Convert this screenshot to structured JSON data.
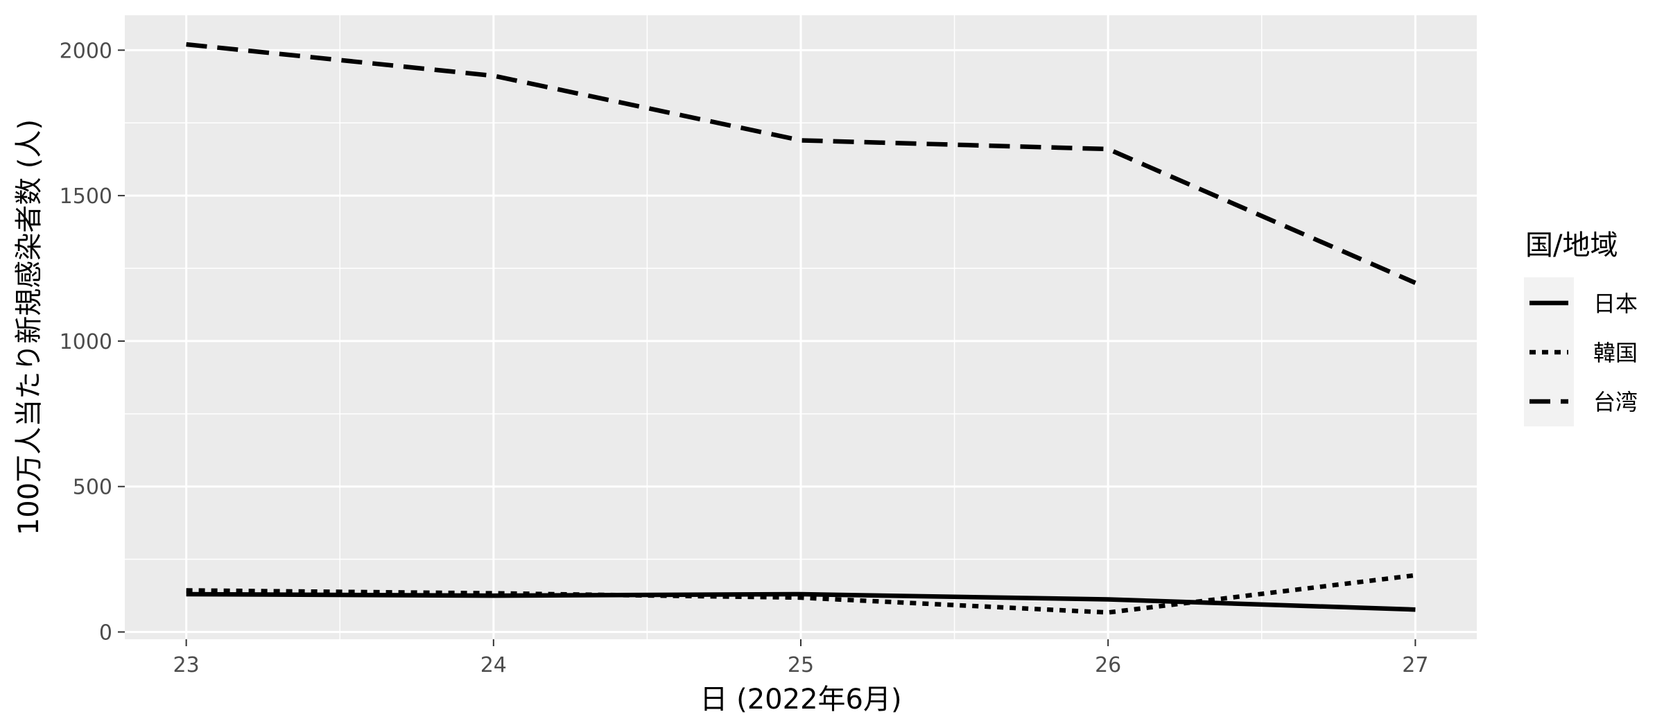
{
  "chart_data": {
    "type": "line",
    "x": [
      23,
      24,
      25,
      26,
      27
    ],
    "x_tick_labels": [
      "23",
      "24",
      "25",
      "26",
      "27"
    ],
    "xlim": [
      22.8,
      27.2
    ],
    "ylim": [
      -25,
      2120
    ],
    "y_ticks": [
      0,
      500,
      1000,
      1500,
      2000
    ],
    "y_tick_labels": [
      "0",
      "500",
      "1000",
      "1500",
      "2000"
    ],
    "xlabel": "日 (2022年6月)",
    "ylabel": "100万人当たり新規感染者数 (人)",
    "grid": true,
    "legend": {
      "title": "国/地域",
      "position": "right"
    },
    "series": [
      {
        "name": "日本",
        "linetype": "solid",
        "color": "#000000",
        "values": [
          130,
          125,
          130,
          112,
          77
        ]
      },
      {
        "name": "韓国",
        "linetype": "dotted",
        "color": "#000000",
        "values": [
          143,
          133,
          118,
          67,
          195
        ]
      },
      {
        "name": "台湾",
        "linetype": "dashed",
        "color": "#000000",
        "values": [
          2020,
          1912,
          1690,
          1660,
          1200
        ]
      }
    ],
    "colors": {
      "panel": "#ebebeb",
      "grid": "#ffffff",
      "line": "#000000",
      "tick_text": "#4d4d4d"
    }
  }
}
